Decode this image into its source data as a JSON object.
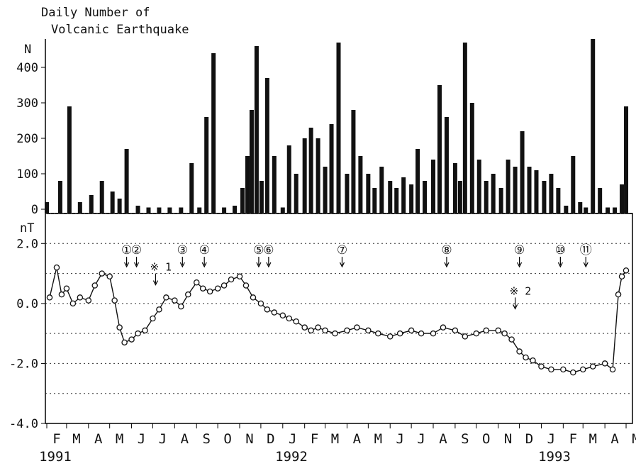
{
  "chart_data": [
    {
      "type": "bar",
      "title": [
        "Daily Number of",
        "Volcanic Earthquake"
      ],
      "ylabel": "N",
      "ylim": [
        0,
        480
      ],
      "yticks": [
        0,
        100,
        200,
        300,
        400
      ],
      "note": "approximate daily counts, sampled roughly every 10 days from 1991-02 to 1993-05",
      "x": [
        "1991-02-01",
        "1991-02-20",
        "1991-03-05",
        "1991-03-20",
        "1991-04-05",
        "1991-04-20",
        "1991-05-05",
        "1991-05-15",
        "1991-05-25",
        "1991-06-10",
        "1991-06-25",
        "1991-07-10",
        "1991-07-25",
        "1991-08-10",
        "1991-08-25",
        "1991-09-05",
        "1991-09-15",
        "1991-09-25",
        "1991-10-10",
        "1991-10-25",
        "1991-11-05",
        "1991-11-12",
        "1991-11-18",
        "1991-11-25",
        "1991-12-02",
        "1991-12-10",
        "1991-12-20",
        "1992-01-01",
        "1992-01-10",
        "1992-01-20",
        "1992-02-01",
        "1992-02-10",
        "1992-02-20",
        "1992-03-01",
        "1992-03-10",
        "1992-03-20",
        "1992-04-01",
        "1992-04-10",
        "1992-04-20",
        "1992-05-01",
        "1992-05-10",
        "1992-05-20",
        "1992-06-01",
        "1992-06-10",
        "1992-06-20",
        "1992-07-01",
        "1992-07-10",
        "1992-07-20",
        "1992-08-01",
        "1992-08-10",
        "1992-08-20",
        "1992-09-01",
        "1992-09-08",
        "1992-09-15",
        "1992-09-25",
        "1992-10-05",
        "1992-10-15",
        "1992-10-25",
        "1992-11-05",
        "1992-11-15",
        "1992-11-25",
        "1992-12-05",
        "1992-12-15",
        "1992-12-25",
        "1993-01-05",
        "1993-01-15",
        "1993-01-25",
        "1993-02-05",
        "1993-02-15",
        "1993-02-25",
        "1993-03-05",
        "1993-03-15",
        "1993-03-25",
        "1993-04-05",
        "1993-04-15",
        "1993-04-25",
        "1993-05-01"
      ],
      "values": [
        20,
        80,
        290,
        20,
        40,
        80,
        50,
        30,
        170,
        10,
        5,
        5,
        5,
        5,
        130,
        5,
        260,
        440,
        5,
        10,
        60,
        150,
        280,
        460,
        80,
        370,
        150,
        5,
        180,
        100,
        200,
        230,
        200,
        120,
        240,
        470,
        100,
        280,
        150,
        100,
        60,
        120,
        80,
        60,
        90,
        70,
        170,
        80,
        140,
        350,
        260,
        130,
        80,
        470,
        300,
        140,
        80,
        100,
        60,
        140,
        120,
        220,
        120,
        110,
        80,
        100,
        60,
        10,
        150,
        20,
        5,
        480,
        60,
        5,
        5,
        70,
        290
      ]
    },
    {
      "type": "scatter",
      "ylabel": "nT",
      "ylim": [
        -4.0,
        3.0
      ],
      "yticks": [
        -4.0,
        -2.0,
        0.0,
        2.0
      ],
      "x_month_labels": [
        "F",
        "M",
        "A",
        "M",
        "J",
        "J",
        "A",
        "S",
        "O",
        "N",
        "D",
        "J",
        "F",
        "M",
        "A",
        "M",
        "J",
        "J",
        "A",
        "S",
        "O",
        "N",
        "D",
        "J",
        "F",
        "M",
        "A",
        "M"
      ],
      "year_labels": [
        "1991",
        "1992",
        "1993"
      ],
      "events": [
        {
          "label": "①",
          "x": "1991-05-25"
        },
        {
          "label": "②",
          "x": "1991-06-08"
        },
        {
          "label": "③",
          "x": "1991-08-12"
        },
        {
          "label": "④",
          "x": "1991-09-12"
        },
        {
          "label": "⑤",
          "x": "1991-11-28"
        },
        {
          "label": "⑥",
          "x": "1991-12-12"
        },
        {
          "label": "⑦",
          "x": "1992-03-25"
        },
        {
          "label": "⑧",
          "x": "1992-08-20"
        },
        {
          "label": "⑨",
          "x": "1992-12-01"
        },
        {
          "label": "⑩",
          "x": "1993-01-28"
        },
        {
          "label": "⑪",
          "x": "1993-03-05"
        }
      ],
      "remarks": [
        {
          "label": "※ 1",
          "x": "1991-07-05",
          "y": 1.0
        },
        {
          "label": "※ 2",
          "x": "1992-11-25",
          "y": 0.2
        }
      ],
      "x": [
        "1991-02-05",
        "1991-02-15",
        "1991-02-22",
        "1991-03-01",
        "1991-03-10",
        "1991-03-20",
        "1991-04-01",
        "1991-04-10",
        "1991-04-20",
        "1991-05-01",
        "1991-05-08",
        "1991-05-15",
        "1991-05-22",
        "1991-06-01",
        "1991-06-10",
        "1991-06-20",
        "1991-07-01",
        "1991-07-10",
        "1991-07-20",
        "1991-08-01",
        "1991-08-10",
        "1991-08-20",
        "1991-09-01",
        "1991-09-10",
        "1991-09-20",
        "1991-10-01",
        "1991-10-10",
        "1991-10-20",
        "1991-11-01",
        "1991-11-10",
        "1991-11-20",
        "1991-12-01",
        "1991-12-10",
        "1991-12-20",
        "1992-01-01",
        "1992-01-10",
        "1992-01-20",
        "1992-02-01",
        "1992-02-10",
        "1992-02-20",
        "1992-03-01",
        "1992-03-15",
        "1992-04-01",
        "1992-04-15",
        "1992-05-01",
        "1992-05-15",
        "1992-06-01",
        "1992-06-15",
        "1992-07-01",
        "1992-07-15",
        "1992-08-01",
        "1992-08-15",
        "1992-09-01",
        "1992-09-15",
        "1992-10-01",
        "1992-10-15",
        "1992-11-01",
        "1992-11-10",
        "1992-11-20",
        "1992-12-01",
        "1992-12-10",
        "1992-12-20",
        "1993-01-01",
        "1993-01-15",
        "1993-02-01",
        "1993-02-15",
        "1993-03-01",
        "1993-03-15",
        "1993-04-01",
        "1993-04-12",
        "1993-04-20",
        "1993-04-25",
        "1993-05-01"
      ],
      "values": [
        0.2,
        1.2,
        0.3,
        0.5,
        0.0,
        0.2,
        0.1,
        0.6,
        1.0,
        0.9,
        0.1,
        -0.8,
        -1.3,
        -1.2,
        -1.0,
        -0.9,
        -0.5,
        -0.2,
        0.2,
        0.1,
        -0.1,
        0.3,
        0.7,
        0.5,
        0.4,
        0.5,
        0.6,
        0.8,
        0.9,
        0.6,
        0.2,
        0.0,
        -0.2,
        -0.3,
        -0.4,
        -0.5,
        -0.6,
        -0.8,
        -0.9,
        -0.8,
        -0.9,
        -1.0,
        -0.9,
        -0.8,
        -0.9,
        -1.0,
        -1.1,
        -1.0,
        -0.9,
        -1.0,
        -1.0,
        -0.8,
        -0.9,
        -1.1,
        -1.0,
        -0.9,
        -0.9,
        -1.0,
        -1.2,
        -1.6,
        -1.8,
        -1.9,
        -2.1,
        -2.2,
        -2.2,
        -2.3,
        -2.2,
        -2.1,
        -2.0,
        -2.2,
        0.3,
        0.9,
        1.1
      ]
    }
  ]
}
